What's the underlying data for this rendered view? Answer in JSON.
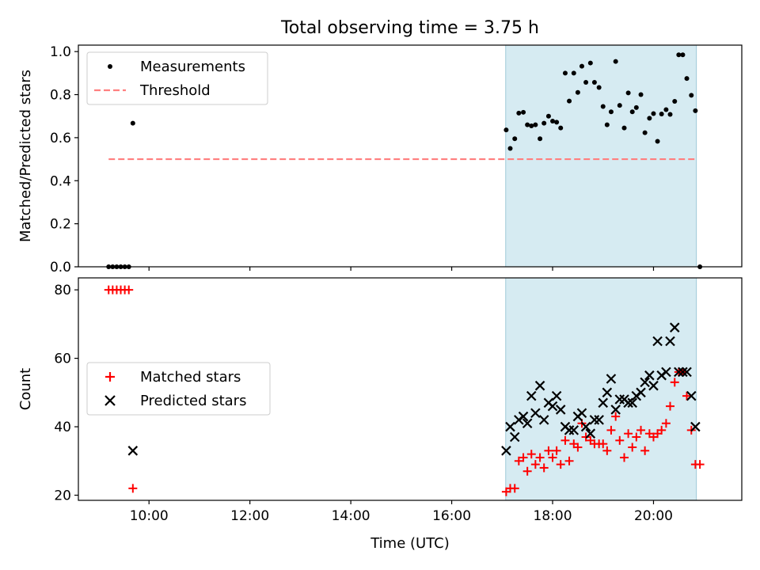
{
  "chart_data": [
    {
      "type": "scatter",
      "title": "Total observing time = 3.75 h",
      "xlabel": "",
      "ylabel": "Matched/Predicted stars",
      "xlim": [
        8.6,
        21.75
      ],
      "ylim": [
        0.0,
        1.03
      ],
      "yticks": [
        0.0,
        0.2,
        0.4,
        0.6,
        0.8,
        1.0
      ],
      "ytick_labels": [
        "0.0",
        "0.2",
        "0.4",
        "0.6",
        "0.8",
        "1.0"
      ],
      "xticks": [
        10,
        12,
        14,
        16,
        18,
        20
      ],
      "legend_location": "upper-left",
      "shaded_interval": [
        17.07,
        20.85
      ],
      "series": [
        {
          "name": "Measurements",
          "marker": "dot",
          "color": "#000000",
          "x": [
            9.2,
            9.28,
            9.36,
            9.44,
            9.52,
            9.6,
            9.68,
            17.08,
            17.16,
            17.25,
            17.33,
            17.42,
            17.5,
            17.58,
            17.66,
            17.75,
            17.83,
            17.92,
            18.0,
            18.08,
            18.16,
            18.25,
            18.33,
            18.42,
            18.5,
            18.58,
            18.66,
            18.75,
            18.83,
            18.92,
            19.0,
            19.08,
            19.16,
            19.25,
            19.33,
            19.42,
            19.5,
            19.58,
            19.66,
            19.75,
            19.83,
            19.92,
            20.0,
            20.08,
            20.16,
            20.25,
            20.33,
            20.42,
            20.5,
            20.58,
            20.66,
            20.75,
            20.83,
            20.92
          ],
          "y": [
            0.0,
            0.0,
            0.0,
            0.0,
            0.0,
            0.0,
            0.667,
            0.636,
            0.55,
            0.595,
            0.714,
            0.718,
            0.66,
            0.655,
            0.66,
            0.595,
            0.667,
            0.7,
            0.677,
            0.672,
            0.645,
            0.9,
            0.77,
            0.9,
            0.81,
            0.932,
            0.857,
            0.947,
            0.857,
            0.833,
            0.745,
            0.66,
            0.72,
            0.954,
            0.75,
            0.645,
            0.808,
            0.72,
            0.74,
            0.8,
            0.623,
            0.69,
            0.712,
            0.583,
            0.71,
            0.73,
            0.708,
            0.769,
            0.985,
            0.985,
            0.875,
            0.797,
            0.725,
            0.0
          ]
        },
        {
          "name": "Threshold",
          "style": "dashed",
          "color": "#ff7f7f",
          "x": [
            9.2,
            20.85
          ],
          "y": [
            0.5,
            0.5
          ]
        }
      ]
    },
    {
      "type": "scatter",
      "title": "",
      "xlabel": "Time (UTC)",
      "ylabel": "Count",
      "xlim": [
        8.6,
        21.75
      ],
      "ylim": [
        18.5,
        83.5
      ],
      "yticks": [
        20,
        40,
        60,
        80
      ],
      "ytick_labels": [
        "20",
        "40",
        "60",
        "80"
      ],
      "xticks": [
        10,
        12,
        14,
        16,
        18,
        20
      ],
      "xtick_labels": [
        "10:00",
        "12:00",
        "14:00",
        "16:00",
        "18:00",
        "20:00"
      ],
      "legend_location": "center-left",
      "shaded_interval": [
        17.07,
        20.85
      ],
      "series": [
        {
          "name": "Matched stars",
          "marker": "plus",
          "color": "#ff0000",
          "x": [
            9.2,
            9.28,
            9.36,
            9.44,
            9.52,
            9.6,
            9.68,
            17.08,
            17.16,
            17.25,
            17.33,
            17.42,
            17.5,
            17.58,
            17.66,
            17.75,
            17.83,
            17.92,
            18.0,
            18.08,
            18.16,
            18.25,
            18.33,
            18.42,
            18.5,
            18.58,
            18.66,
            18.75,
            18.83,
            18.92,
            19.0,
            19.08,
            19.16,
            19.25,
            19.33,
            19.42,
            19.5,
            19.58,
            19.66,
            19.75,
            19.83,
            19.92,
            20.0,
            20.08,
            20.16,
            20.25,
            20.33,
            20.42,
            20.5,
            20.58,
            20.66,
            20.75,
            20.83,
            20.92
          ],
          "y": [
            80,
            80,
            80,
            80,
            80,
            80,
            22,
            21,
            22,
            22,
            30,
            31,
            27,
            32,
            29,
            31,
            28,
            33,
            31,
            33,
            29,
            36,
            30,
            35,
            34,
            41,
            37,
            36,
            35,
            35,
            35,
            33,
            39,
            43,
            36,
            31,
            38,
            34,
            37,
            39,
            33,
            38,
            37,
            38,
            39,
            41,
            46,
            53,
            56,
            56,
            49,
            39,
            29,
            29
          ]
        },
        {
          "name": "Predicted stars",
          "marker": "x",
          "color": "#000000",
          "x": [
            9.68,
            17.08,
            17.16,
            17.25,
            17.33,
            17.42,
            17.5,
            17.58,
            17.66,
            17.75,
            17.83,
            17.92,
            18.0,
            18.08,
            18.16,
            18.25,
            18.33,
            18.42,
            18.5,
            18.58,
            18.66,
            18.75,
            18.83,
            18.92,
            19.0,
            19.08,
            19.16,
            19.25,
            19.33,
            19.42,
            19.5,
            19.58,
            19.66,
            19.75,
            19.83,
            19.92,
            20.0,
            20.08,
            20.16,
            20.25,
            20.33,
            20.42,
            20.5,
            20.58,
            20.66,
            20.75,
            20.83
          ],
          "y": [
            33,
            33,
            40,
            37,
            42,
            43,
            41,
            49,
            44,
            52,
            42,
            47,
            46,
            49,
            45,
            40,
            39,
            39,
            43,
            44,
            40,
            38,
            42,
            42,
            47,
            50,
            54,
            45,
            48,
            48,
            47,
            47,
            49,
            50,
            53,
            55,
            52,
            65,
            55,
            56,
            65,
            69,
            56,
            56,
            56,
            49,
            40
          ]
        }
      ]
    }
  ]
}
